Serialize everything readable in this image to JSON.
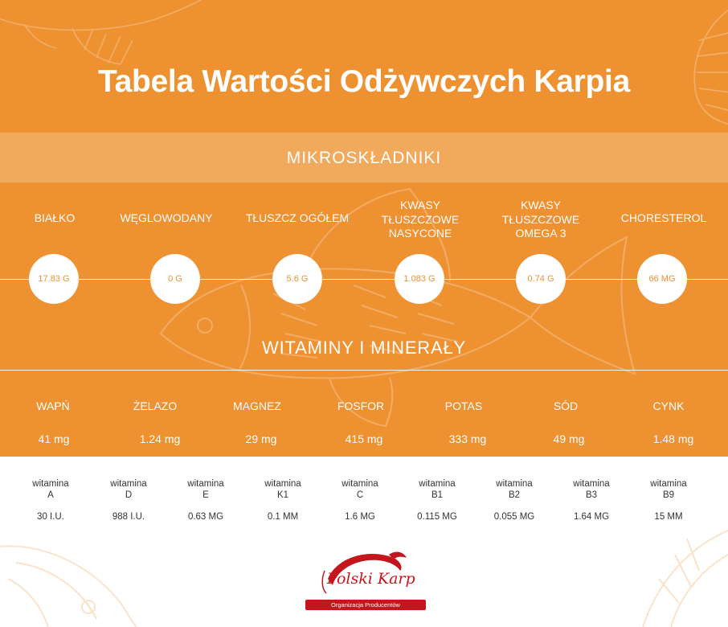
{
  "title": "Tabela Wartości Odżywczych Karpia",
  "colors": {
    "orange": "#ee9130",
    "band": "#f1a95b",
    "brand_red": "#c4171d",
    "text_dark": "#333333"
  },
  "micro_section": {
    "label": "MIKROSKŁADNIKI"
  },
  "macronutrients": [
    {
      "label": "BIAŁKO",
      "value": "17.83 G"
    },
    {
      "label": "WĘGLOWODANY",
      "value": "0 G"
    },
    {
      "label": "TŁUSZCZ OGÓŁEM",
      "value": "5.6 G"
    },
    {
      "label": "KWASY TŁUSZCZOWE NASYCONE",
      "value": "1.083 G"
    },
    {
      "label": "KWASY TŁUSZCZOWE OMEGA 3",
      "value": "0.74 G"
    },
    {
      "label": "CHORESTEROL",
      "value": "66 MG"
    }
  ],
  "minerals_section": {
    "label": "WITAMINY I MINERAŁY"
  },
  "minerals": [
    {
      "label": "WAPŃ",
      "value": "41 mg"
    },
    {
      "label": "ŻELAZO",
      "value": "1.24 mg"
    },
    {
      "label": "MAGNEZ",
      "value": "29 mg"
    },
    {
      "label": "FOSFOR",
      "value": "415 mg"
    },
    {
      "label": "POTAS",
      "value": "333 mg"
    },
    {
      "label": "SÓD",
      "value": "49 mg"
    },
    {
      "label": "CYNK",
      "value": "1.48 mg"
    }
  ],
  "vitamins": [
    {
      "prefix": "witamina",
      "code": "A",
      "value": "30 I.U."
    },
    {
      "prefix": "witamina",
      "code": "D",
      "value": "988 I.U."
    },
    {
      "prefix": "witamina",
      "code": "E",
      "value": "0.63 MG"
    },
    {
      "prefix": "witamina",
      "code": "K1",
      "value": "0.1 MM"
    },
    {
      "prefix": "witamina",
      "code": "C",
      "value": "1.6 MG"
    },
    {
      "prefix": "witamina",
      "code": "B1",
      "value": "0.115 MG"
    },
    {
      "prefix": "witamina",
      "code": "B2",
      "value": "0.055 MG"
    },
    {
      "prefix": "witamina",
      "code": "B3",
      "value": "1.64 MG"
    },
    {
      "prefix": "witamina",
      "code": "B9",
      "value": "15 MM"
    }
  ],
  "logo": {
    "name": "Polski Karp",
    "subtitle": "Organizacja Producentów",
    "icon": "fish-logo-icon"
  }
}
